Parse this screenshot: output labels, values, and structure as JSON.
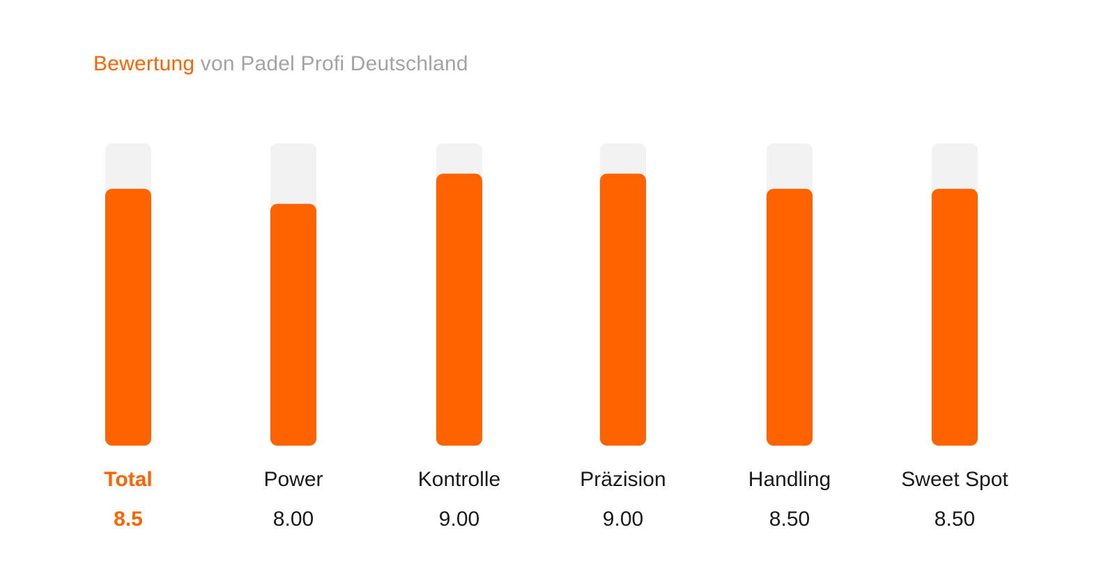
{
  "title": {
    "accent": "Bewertung",
    "rest": "von Padel Profi Deutschland"
  },
  "colors": {
    "accent": "#ff6300",
    "track": "#f2f2f2",
    "title_rest": "#a3a3a3",
    "label": "#1a1a1a"
  },
  "chart_data": {
    "type": "bar",
    "categories": [
      "Total",
      "Power",
      "Kontrolle",
      "Präzision",
      "Handling",
      "Sweet Spot"
    ],
    "values": [
      8.5,
      8.0,
      9.0,
      9.0,
      8.5,
      8.5
    ],
    "value_labels": [
      "8.5",
      "8.00",
      "9.00",
      "9.00",
      "8.50",
      "8.50"
    ],
    "highlight": "Total",
    "ylim": [
      0,
      10
    ],
    "grid": false,
    "legend": "none",
    "title": "Bewertung von Padel Profi Deutschland",
    "xlabel": "",
    "ylabel": ""
  }
}
